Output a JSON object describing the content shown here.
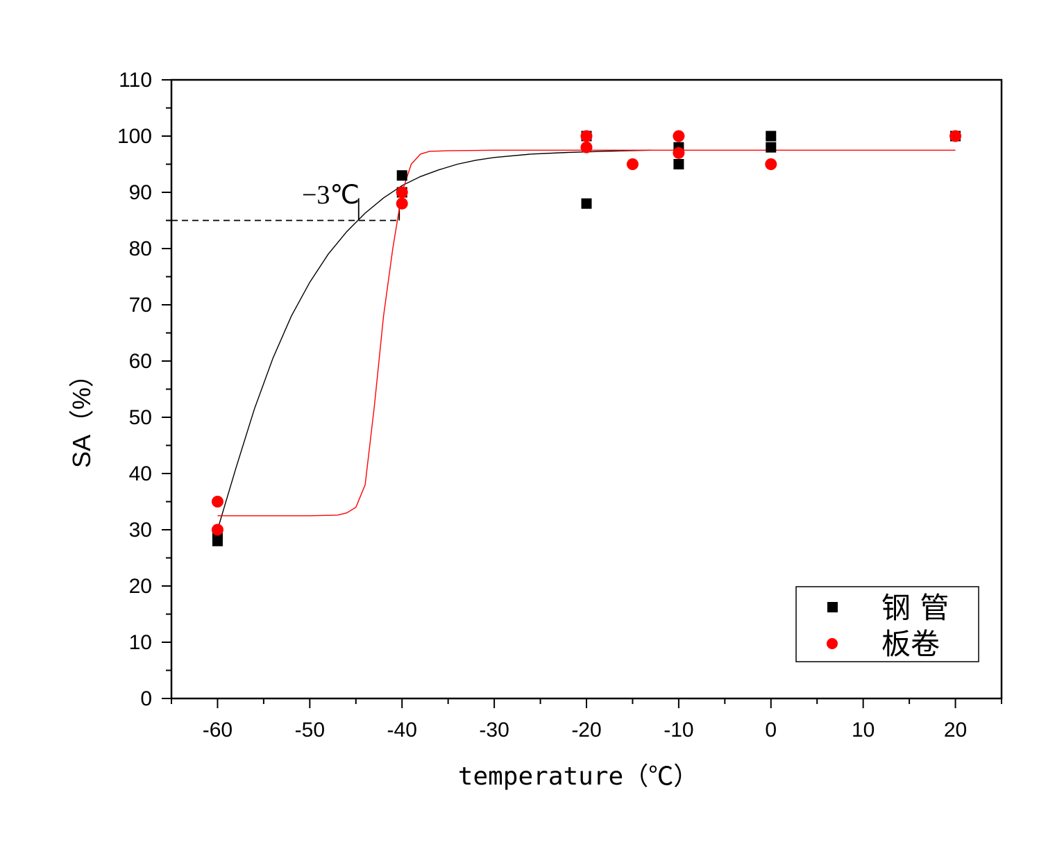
{
  "chart_data": {
    "type": "scatter",
    "xlabel": "temperature（℃）",
    "ylabel": "SA（%）",
    "xlim": [
      -65,
      25
    ],
    "ylim": [
      0,
      110
    ],
    "x_ticks": [
      "-60",
      "-50",
      "-40",
      "-30",
      "-20",
      "-10",
      "0",
      "10",
      "20"
    ],
    "y_ticks": [
      "0",
      "10",
      "20",
      "30",
      "40",
      "50",
      "60",
      "70",
      "80",
      "90",
      "100",
      "110"
    ],
    "grid": false,
    "legend_position": "bottom-right",
    "annotation": {
      "text": "−3℃",
      "reference_level": 85
    },
    "series": [
      {
        "name": "钢 管",
        "marker": "square",
        "color": "#000000",
        "points": [
          [
            -60,
            28
          ],
          [
            -60,
            29
          ],
          [
            -40,
            93
          ],
          [
            -40,
            90
          ],
          [
            -20,
            100
          ],
          [
            -20,
            88
          ],
          [
            -10,
            98
          ],
          [
            -10,
            95
          ],
          [
            0,
            100
          ],
          [
            0,
            98
          ],
          [
            20,
            100
          ]
        ],
        "fit_curve": [
          [
            -60,
            30
          ],
          [
            -58,
            41
          ],
          [
            -56,
            51.5
          ],
          [
            -54,
            60.5
          ],
          [
            -52,
            68
          ],
          [
            -50,
            74
          ],
          [
            -48,
            79
          ],
          [
            -46,
            83
          ],
          [
            -44,
            86.3
          ],
          [
            -42,
            89
          ],
          [
            -40,
            91.2
          ],
          [
            -38,
            92.8
          ],
          [
            -36,
            94
          ],
          [
            -34,
            95
          ],
          [
            -32,
            95.7
          ],
          [
            -30,
            96.2
          ],
          [
            -26,
            96.8
          ],
          [
            -22,
            97.1
          ],
          [
            -18,
            97.3
          ],
          [
            -13,
            97.5
          ]
        ]
      },
      {
        "name": "板卷",
        "marker": "circle",
        "color": "#ff0000",
        "points": [
          [
            -60,
            35
          ],
          [
            -60,
            30
          ],
          [
            -40,
            90
          ],
          [
            -40,
            88
          ],
          [
            -20,
            100
          ],
          [
            -20,
            98
          ],
          [
            -15,
            95
          ],
          [
            -10,
            100
          ],
          [
            -10,
            97
          ],
          [
            0,
            95
          ],
          [
            20,
            100
          ]
        ],
        "fit_curve": [
          [
            -60,
            32.5
          ],
          [
            -55,
            32.5
          ],
          [
            -50,
            32.5
          ],
          [
            -47,
            32.6
          ],
          [
            -46,
            33
          ],
          [
            -45,
            34
          ],
          [
            -44,
            38
          ],
          [
            -43,
            52
          ],
          [
            -42,
            68
          ],
          [
            -41,
            80
          ],
          [
            -40,
            90
          ],
          [
            -39,
            95
          ],
          [
            -38,
            96.8
          ],
          [
            -37,
            97.3
          ],
          [
            -35,
            97.4
          ],
          [
            -30,
            97.5
          ],
          [
            -20,
            97.5
          ],
          [
            -10,
            97.5
          ],
          [
            0,
            97.5
          ],
          [
            10,
            97.5
          ],
          [
            20,
            97.5
          ]
        ]
      }
    ]
  }
}
